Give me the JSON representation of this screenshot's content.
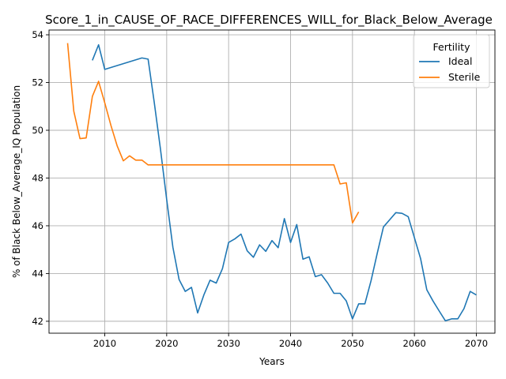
{
  "chart_data": {
    "type": "line",
    "title": "Score_1_in_CAUSE_OF_RACE_DIFFERENCES_WILL_for_Black_Below_Average",
    "xlabel": "Years",
    "ylabel": "% of Black Below_Average_IQ Population",
    "xlim": [
      2001,
      2073
    ],
    "ylim": [
      41.5,
      54.2
    ],
    "xticks": [
      2010,
      2020,
      2030,
      2040,
      2050,
      2060,
      2070
    ],
    "yticks": [
      42,
      44,
      46,
      48,
      50,
      52,
      54
    ],
    "grid": true,
    "legend": {
      "title": "Fertility",
      "placement": "top-right"
    },
    "series": [
      {
        "name": "Ideal",
        "color": "#1f77b4",
        "points": [
          [
            2008,
            52.93
          ],
          [
            2009,
            53.58
          ],
          [
            2010,
            52.55
          ],
          [
            2016,
            53.03
          ],
          [
            2017,
            52.98
          ],
          [
            2018,
            51.15
          ],
          [
            2019,
            49.2
          ],
          [
            2020,
            47.1
          ],
          [
            2021,
            45.1
          ],
          [
            2022,
            43.75
          ],
          [
            2023,
            43.25
          ],
          [
            2024,
            43.42
          ],
          [
            2025,
            42.35
          ],
          [
            2026,
            43.1
          ],
          [
            2027,
            43.72
          ],
          [
            2028,
            43.6
          ],
          [
            2029,
            44.2
          ],
          [
            2030,
            45.3
          ],
          [
            2031,
            45.45
          ],
          [
            2032,
            45.65
          ],
          [
            2033,
            44.95
          ],
          [
            2034,
            44.68
          ],
          [
            2035,
            45.2
          ],
          [
            2036,
            44.93
          ],
          [
            2037,
            45.38
          ],
          [
            2038,
            45.08
          ],
          [
            2039,
            46.3
          ],
          [
            2040,
            45.3
          ],
          [
            2041,
            46.05
          ],
          [
            2042,
            44.6
          ],
          [
            2043,
            44.7
          ],
          [
            2044,
            43.87
          ],
          [
            2045,
            43.95
          ],
          [
            2046,
            43.6
          ],
          [
            2047,
            43.17
          ],
          [
            2048,
            43.17
          ],
          [
            2049,
            42.85
          ],
          [
            2050,
            42.1
          ],
          [
            2051,
            42.73
          ],
          [
            2052,
            42.73
          ],
          [
            2053,
            43.7
          ],
          [
            2054,
            44.85
          ],
          [
            2055,
            45.95
          ],
          [
            2056,
            46.25
          ],
          [
            2057,
            46.55
          ],
          [
            2058,
            46.52
          ],
          [
            2059,
            46.38
          ],
          [
            2060,
            45.5
          ],
          [
            2061,
            44.62
          ],
          [
            2062,
            43.32
          ],
          [
            2063,
            42.85
          ],
          [
            2064,
            42.43
          ],
          [
            2065,
            42.02
          ],
          [
            2066,
            42.1
          ],
          [
            2067,
            42.1
          ],
          [
            2068,
            42.53
          ],
          [
            2069,
            43.25
          ],
          [
            2070,
            43.1
          ]
        ]
      },
      {
        "name": "Sterile",
        "color": "#ff7f0e",
        "points": [
          [
            2004,
            53.65
          ],
          [
            2005,
            50.8
          ],
          [
            2006,
            49.65
          ],
          [
            2007,
            49.68
          ],
          [
            2008,
            51.42
          ],
          [
            2009,
            52.05
          ],
          [
            2010,
            51.15
          ],
          [
            2011,
            50.2
          ],
          [
            2012,
            49.35
          ],
          [
            2013,
            48.72
          ],
          [
            2014,
            48.93
          ],
          [
            2015,
            48.75
          ],
          [
            2016,
            48.75
          ],
          [
            2017,
            48.55
          ],
          [
            2020,
            48.55
          ],
          [
            2030,
            48.55
          ],
          [
            2040,
            48.55
          ],
          [
            2047,
            48.55
          ],
          [
            2048,
            47.75
          ],
          [
            2049,
            47.8
          ],
          [
            2050,
            46.12
          ],
          [
            2051,
            46.58
          ]
        ]
      }
    ]
  }
}
